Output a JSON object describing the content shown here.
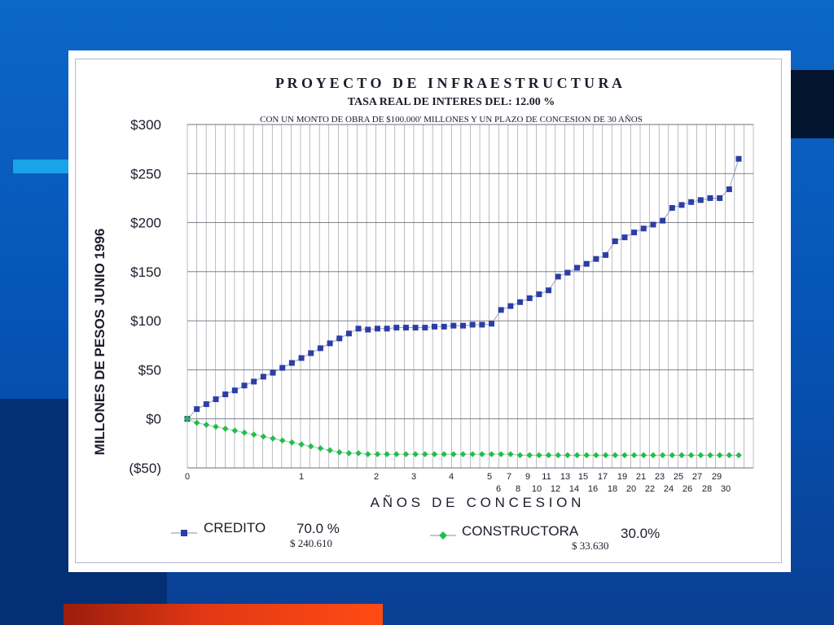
{
  "slide": {
    "colors": {
      "background": "#0c67c8",
      "accent_bar": "#ff4b14",
      "cyan_bar": "#1aa3e8",
      "dark_panel": "#042f74"
    }
  },
  "chart_data": {
    "type": "scatter",
    "title": "P R O Y E C T O   D E   I N F R A E S T R U C T U R A",
    "subtitle": "TASA REAL DE INTERES DEL:  12.00 %",
    "note": "CON UN MONTO DE OBRA DE $100.000' MILLONES  Y UN PLAZO DE CONCESION DE 30 AÑOS",
    "xlabel": "A Ñ O S   D E   C O N C E S I O N",
    "ylabel": "MILLONES DE PESOS JUNIO 1996",
    "ylim": [
      -50,
      300
    ],
    "y_ticks": [
      "$300",
      "$250",
      "$200",
      "$150",
      "$100",
      "$50",
      "$0",
      "($50)"
    ],
    "y_tick_values": [
      300,
      250,
      200,
      150,
      100,
      50,
      0,
      -50
    ],
    "x_tick_labels_top": [
      "0",
      "1",
      "2",
      "3",
      "4",
      "5",
      "7",
      "9",
      "11",
      "13",
      "15",
      "17",
      "19",
      "21",
      "23",
      "25",
      "27",
      "29"
    ],
    "x_tick_labels_bottom": [
      "6",
      "8",
      "10",
      "12",
      "14",
      "16",
      "18",
      "20",
      "22",
      "24",
      "26",
      "28",
      "30"
    ],
    "grid": true,
    "legend_position": "bottom",
    "series": [
      {
        "name": "CREDITO",
        "percent": "70.0 %",
        "amount": "$ 240.610",
        "color": "#2b3ea6",
        "marker": "square",
        "values": [
          0,
          10,
          15,
          20,
          25,
          29,
          34,
          38,
          43,
          47,
          52,
          57,
          62,
          67,
          72,
          77,
          82,
          87,
          92,
          91,
          92,
          92,
          93,
          93,
          93,
          93,
          94,
          94,
          95,
          95,
          96,
          96,
          97,
          111,
          115,
          119,
          123,
          127,
          131,
          145,
          149,
          154,
          158,
          163,
          167,
          181,
          185,
          190,
          194,
          198,
          202,
          215,
          218,
          221,
          223,
          225,
          225,
          234,
          265
        ]
      },
      {
        "name": "CONSTRUCTORA",
        "percent": "30.0%",
        "amount": "$ 33.630",
        "color": "#1fbf4a",
        "marker": "diamond",
        "values": [
          0,
          -4,
          -6,
          -8,
          -10,
          -12,
          -14,
          -16,
          -18,
          -20,
          -22,
          -24,
          -26,
          -28,
          -30,
          -32,
          -34,
          -35,
          -35,
          -36,
          -36,
          -36,
          -36,
          -36,
          -36,
          -36,
          -36,
          -36,
          -36,
          -36,
          -36,
          -36,
          -36,
          -36,
          -36,
          -37,
          -37,
          -37,
          -37,
          -37,
          -37,
          -37,
          -37,
          -37,
          -37,
          -37,
          -37,
          -37,
          -37,
          -37,
          -37,
          -37,
          -37,
          -37,
          -37,
          -37,
          -37,
          -37,
          -37
        ]
      }
    ]
  }
}
